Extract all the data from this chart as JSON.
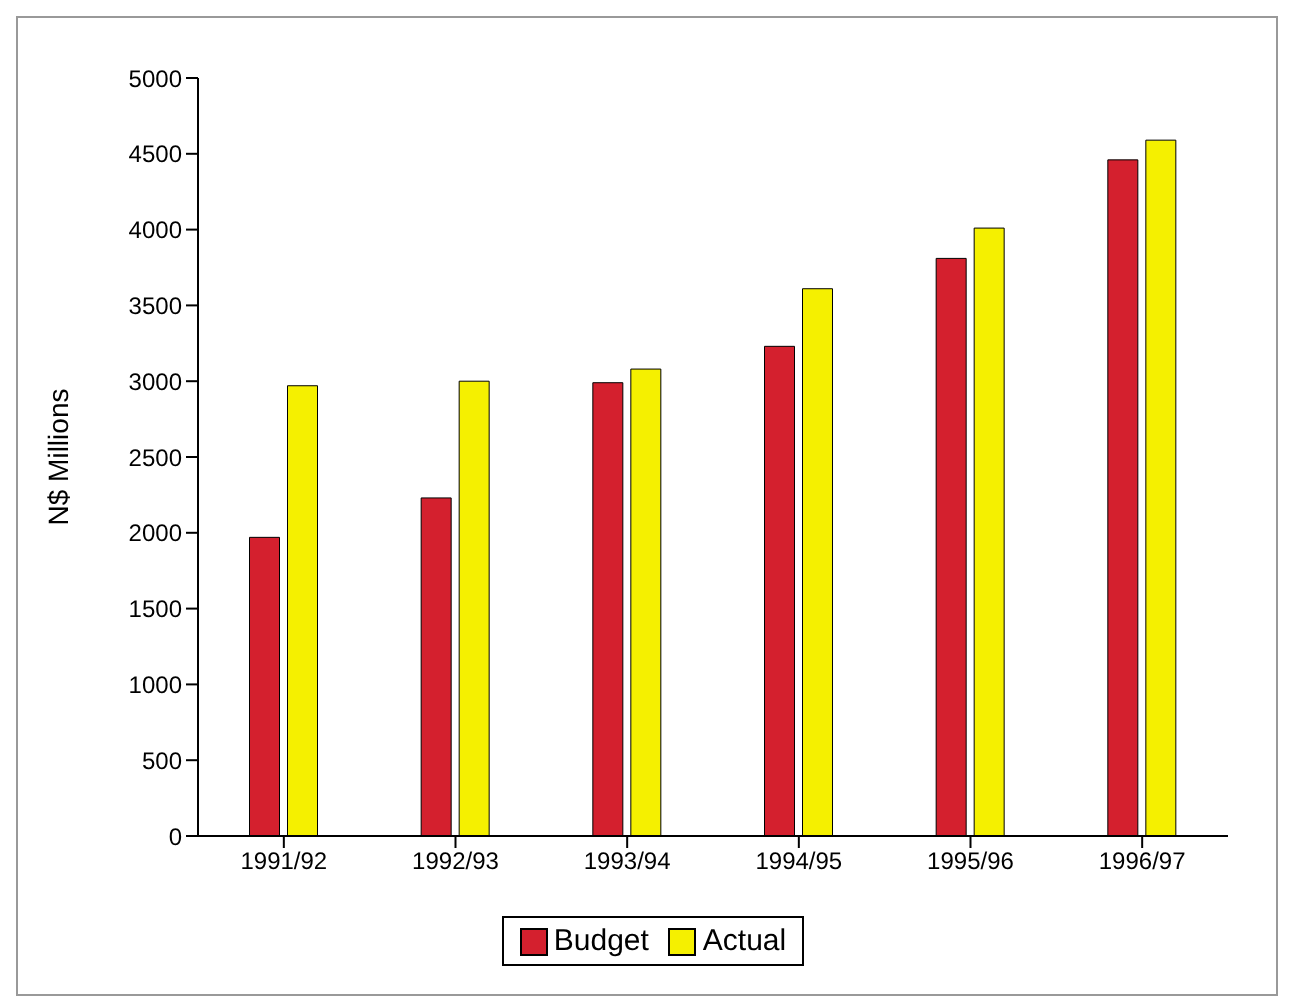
{
  "chart_data": {
    "type": "bar",
    "ylabel": "N$ Millions",
    "categories": [
      "1991/92",
      "1992/93",
      "1993/94",
      "1994/95",
      "1995/96",
      "1996/97"
    ],
    "series": [
      {
        "name": "Budget",
        "color": "#d4202e",
        "values": [
          1970,
          2230,
          2990,
          3230,
          3810,
          4460
        ]
      },
      {
        "name": "Actual",
        "color": "#f5f000",
        "values": [
          2970,
          3000,
          3080,
          3610,
          4010,
          4590
        ]
      }
    ],
    "ylim": [
      0,
      5000
    ],
    "yticks": [
      0,
      500,
      1000,
      1500,
      2000,
      2500,
      3000,
      3500,
      4000,
      4500,
      5000
    ],
    "grid": false,
    "legend": "bottom"
  }
}
